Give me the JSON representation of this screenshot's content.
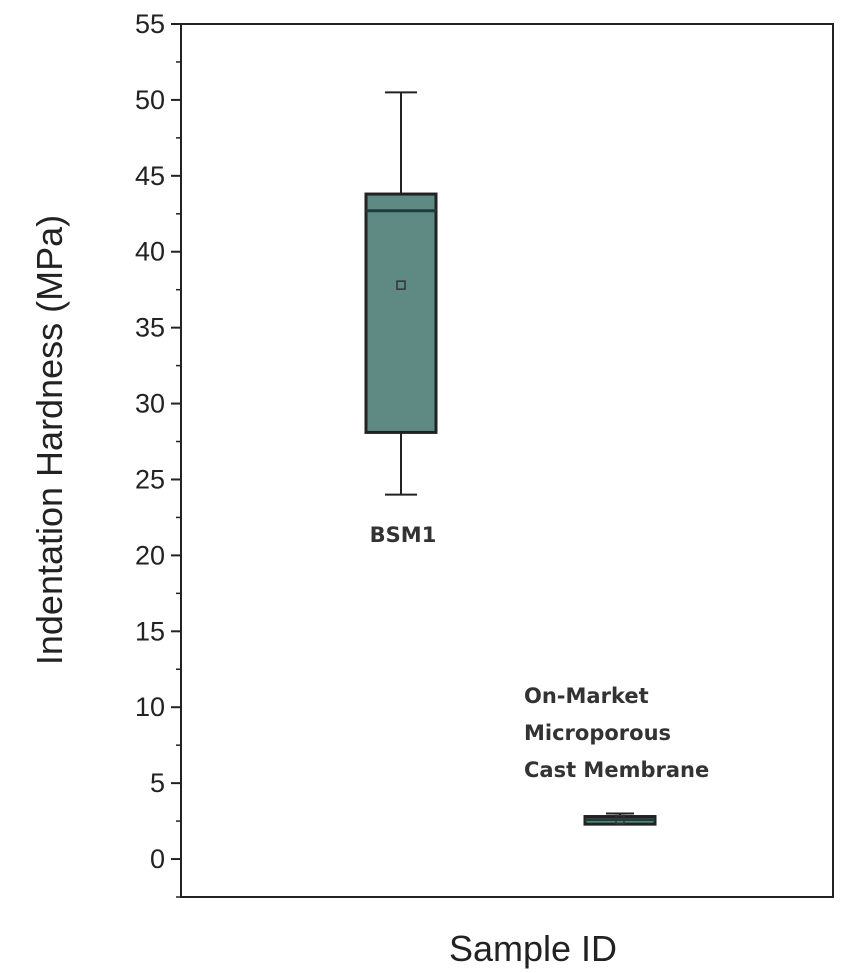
{
  "chart_data": {
    "type": "box",
    "xlabel": "Sample ID",
    "ylabel": "Indentation Hardness (MPa)",
    "ylim": [
      -2.5,
      55
    ],
    "yticks": [
      0,
      5,
      10,
      15,
      20,
      25,
      30,
      35,
      40,
      45,
      50,
      55
    ],
    "grid": false,
    "boxes": [
      {
        "label_lines": [
          "BSM1"
        ],
        "whisker_low": 24,
        "q1": 28.1,
        "median": 42.7,
        "q3": 43.8,
        "whisker_high": 50.5,
        "mean": 37.8,
        "color": "#5f8a84"
      },
      {
        "label_lines": [
          "On-Market",
          "Microporous",
          "Cast Membrane"
        ],
        "whisker_low": 2.3,
        "q1": 2.3,
        "median": 2.6,
        "q3": 2.8,
        "whisker_high": 3.0,
        "mean": 2.6,
        "color": "#5f8a84"
      }
    ]
  }
}
